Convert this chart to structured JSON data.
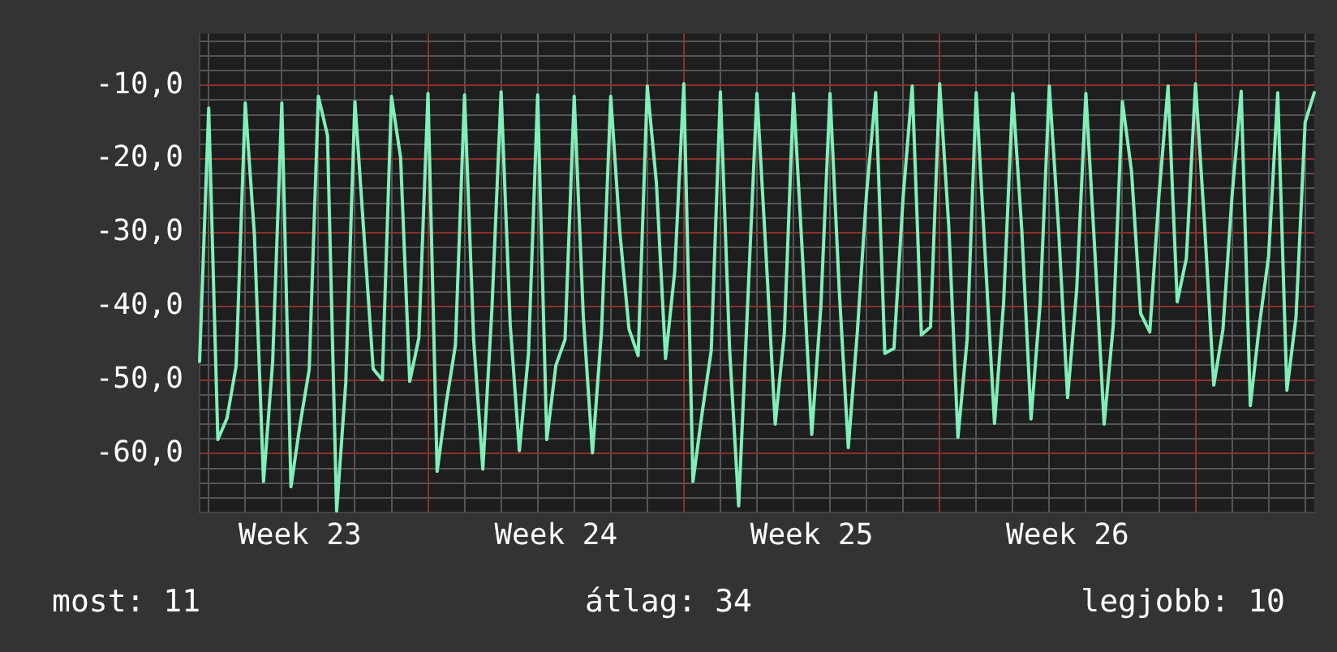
{
  "chart_data": {
    "type": "line",
    "categories": [
      null,
      null,
      null,
      null,
      null,
      null,
      null,
      null,
      null,
      null,
      null,
      "Week 23",
      null,
      null,
      null,
      null,
      null,
      null,
      null,
      null,
      null,
      null,
      null,
      null,
      null,
      null,
      null,
      null,
      null,
      null,
      null,
      null,
      null,
      null,
      null,
      null,
      null,
      null,
      null,
      "Week 24",
      null,
      null,
      null,
      null,
      null,
      null,
      null,
      null,
      null,
      null,
      null,
      null,
      null,
      null,
      null,
      null,
      null,
      null,
      null,
      null,
      null,
      null,
      null,
      null,
      null,
      null,
      null,
      "Week 25",
      null,
      null,
      null,
      null,
      null,
      null,
      null,
      null,
      null,
      null,
      null,
      null,
      null,
      null,
      null,
      null,
      null,
      null,
      null,
      null,
      null,
      null,
      null,
      null,
      null,
      null,
      null,
      "Week 26",
      null,
      null,
      null,
      null,
      null,
      null,
      null,
      null,
      null,
      null,
      null,
      null,
      null,
      null,
      null,
      null,
      null,
      null,
      null,
      null,
      null,
      null,
      null,
      null,
      null,
      null,
      null
    ],
    "series": [
      {
        "color": "#80f0b8",
        "values": [
          -47.5,
          -13.1,
          -58.1,
          -55.2,
          -48.1,
          -12.4,
          -30.3,
          -63.8,
          -47.5,
          -12.4,
          -64.5,
          -56,
          -48.6,
          -11.5,
          -16.8,
          -67.8,
          -50.4,
          -12.2,
          -30.4,
          -48.5,
          -50,
          -11.5,
          -19.8,
          -50.2,
          -44.3,
          -11.1,
          -62.4,
          -53.1,
          -45.3,
          -11.3,
          -44.6,
          -62.1,
          -40.3,
          -10.9,
          -42.5,
          -59.6,
          -46.4,
          -11.3,
          -58.1,
          -48,
          -44.5,
          -11.5,
          -41.4,
          -59.9,
          -43.2,
          -11.5,
          -30,
          -43.1,
          -46.7,
          -10.1,
          -23.3,
          -47.1,
          -35.3,
          -9.8,
          -63.8,
          -54.5,
          -46,
          -10.9,
          -45.6,
          -67.1,
          -39.3,
          -11.1,
          -33,
          -56,
          -43.7,
          -11.1,
          -33.5,
          -57.4,
          -40,
          -11.1,
          -37.6,
          -59.2,
          -43.3,
          -24.6,
          -11,
          -46.4,
          -45.7,
          -25.2,
          -10.1,
          -43.9,
          -42.8,
          -9.8,
          -29.2,
          -57.8,
          -44.6,
          -11,
          -33.5,
          -55.9,
          -39.5,
          -11.1,
          -29.9,
          -55.3,
          -39.6,
          -10.1,
          -29.2,
          -52.4,
          -37.7,
          -11.1,
          -32.9,
          -56,
          -42.6,
          -12.2,
          -21.7,
          -41,
          -43.5,
          -25,
          -10.1,
          -39.4,
          -33.5,
          -9.8,
          -29,
          -50.7,
          -43.2,
          -25,
          -10.8,
          -53.5,
          -42.5,
          -33.2,
          -11,
          -51.4,
          -41.5,
          -15,
          -11
        ]
      }
    ],
    "ylim": [
      -68,
      -3
    ],
    "yticks": [
      {
        "value": -68,
        "label": null
      },
      {
        "value": -66,
        "label": null
      },
      {
        "value": -64,
        "label": null
      },
      {
        "value": -62,
        "label": null
      },
      {
        "value": -60,
        "label": "-60,0"
      },
      {
        "value": -58,
        "label": null
      },
      {
        "value": -56,
        "label": null
      },
      {
        "value": -54,
        "label": null
      },
      {
        "value": -52,
        "label": null
      },
      {
        "value": -50,
        "label": "-50,0"
      },
      {
        "value": -48,
        "label": null
      },
      {
        "value": -46,
        "label": null
      },
      {
        "value": -44,
        "label": null
      },
      {
        "value": -42,
        "label": null
      },
      {
        "value": -40,
        "label": "-40,0"
      },
      {
        "value": -38,
        "label": null
      },
      {
        "value": -36,
        "label": null
      },
      {
        "value": -34,
        "label": null
      },
      {
        "value": -32,
        "label": null
      },
      {
        "value": -30,
        "label": "-30,0"
      },
      {
        "value": -28,
        "label": null
      },
      {
        "value": -26,
        "label": null
      },
      {
        "value": -24,
        "label": null
      },
      {
        "value": -22,
        "label": null
      },
      {
        "value": -20,
        "label": "-20,0"
      },
      {
        "value": -18,
        "label": null
      },
      {
        "value": -16,
        "label": null
      },
      {
        "value": -14,
        "label": null
      },
      {
        "value": -12,
        "label": null
      },
      {
        "value": -10,
        "label": "-10,0"
      },
      {
        "value": -8,
        "label": null
      },
      {
        "value": -6,
        "label": null
      },
      {
        "value": -4,
        "label": null
      }
    ],
    "grid": true,
    "legend": false,
    "marker": "none",
    "line_style": "solid",
    "annotations": [
      "most: 11",
      "átlag: 34",
      "legjobb: 10"
    ]
  }
}
